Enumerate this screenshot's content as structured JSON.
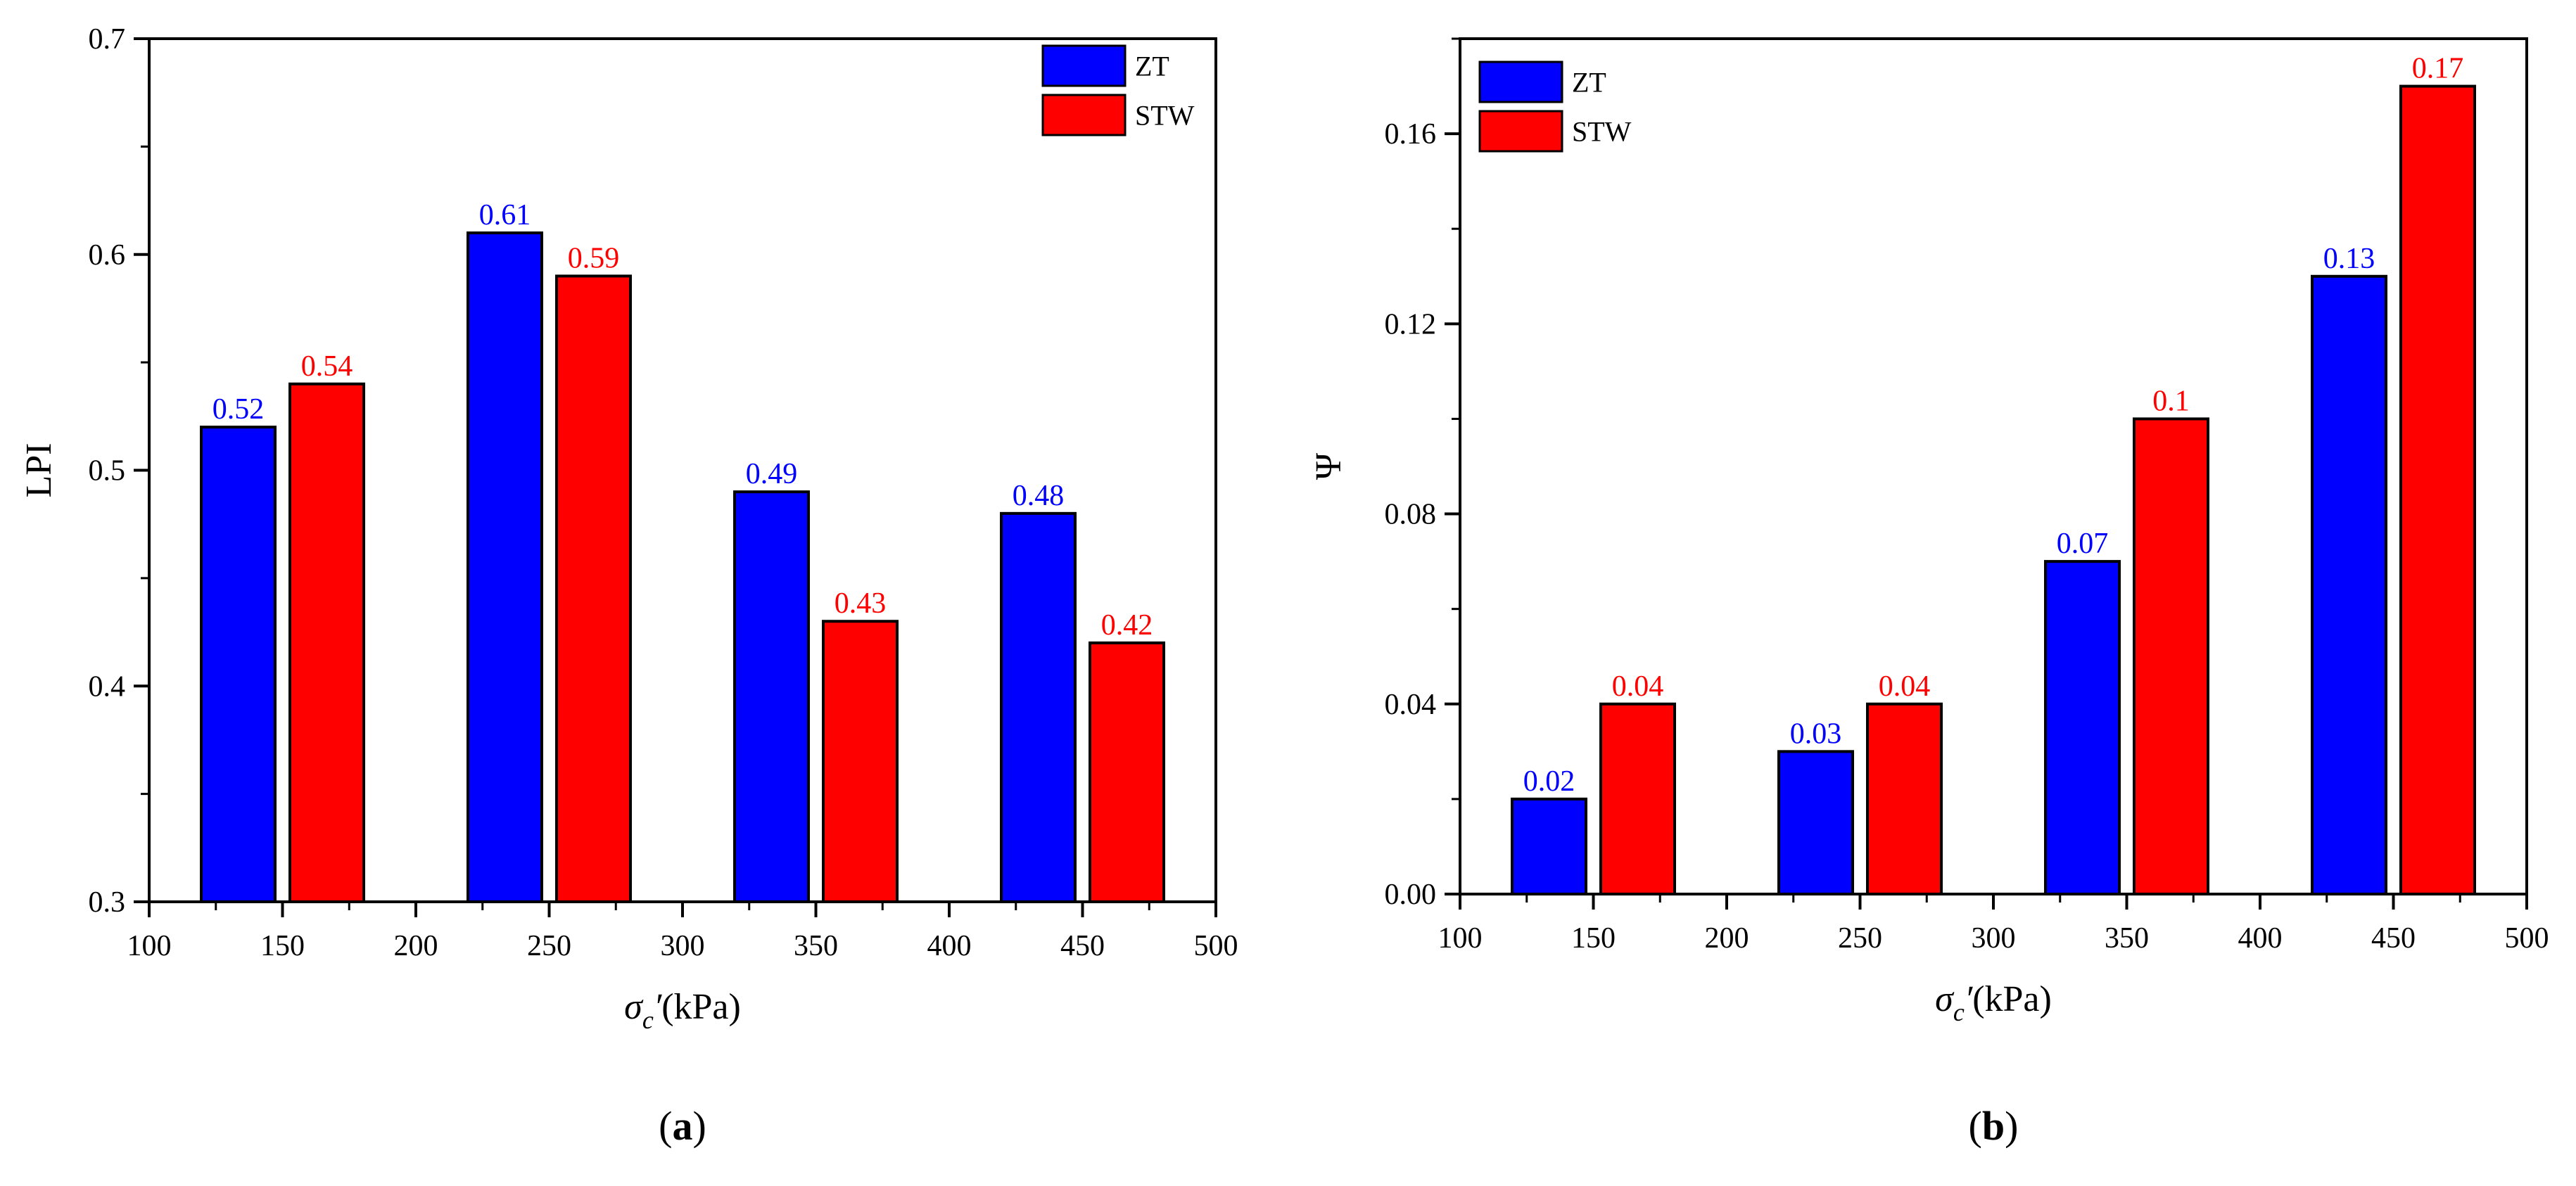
{
  "chart_data": [
    {
      "type": "bar",
      "panel_label": "a",
      "categories": [
        150,
        250,
        350,
        450
      ],
      "series": [
        {
          "name": "ZT",
          "color": "#0000ff",
          "values": [
            0.52,
            0.61,
            0.49,
            0.48
          ],
          "labels": [
            "0.52",
            "0.61",
            "0.49",
            "0.48"
          ]
        },
        {
          "name": "STW",
          "color": "#ff0000",
          "values": [
            0.54,
            0.59,
            0.43,
            0.42
          ],
          "labels": [
            "0.54",
            "0.59",
            "0.43",
            "0.42"
          ]
        }
      ],
      "xlabel": {
        "symbol": "σ",
        "sub": "c",
        "prime": "′",
        "unit": "(kPa)"
      },
      "ylabel": "LPI",
      "xlim": [
        100,
        500
      ],
      "ylim": [
        0.3,
        0.7
      ],
      "xticks": [
        100,
        150,
        200,
        250,
        300,
        350,
        400,
        450,
        500
      ],
      "xtick_labels": [
        "100",
        "150",
        "200",
        "250",
        "300",
        "350",
        "400",
        "450",
        "500"
      ],
      "yticks": [
        0.3,
        0.4,
        0.5,
        0.6,
        0.7
      ],
      "ytick_labels": [
        "0.3",
        "0.4",
        "0.5",
        "0.6",
        "0.7"
      ],
      "legend": "top-right",
      "grid": false
    },
    {
      "type": "bar",
      "panel_label": "b",
      "categories": [
        150,
        250,
        350,
        450
      ],
      "series": [
        {
          "name": "ZT",
          "color": "#0000ff",
          "values": [
            0.02,
            0.03,
            0.07,
            0.13
          ],
          "labels": [
            "0.02",
            "0.03",
            "0.07",
            "0.13"
          ]
        },
        {
          "name": "STW",
          "color": "#ff0000",
          "values": [
            0.04,
            0.04,
            0.1,
            0.17
          ],
          "labels": [
            "0.04",
            "0.04",
            "0.1",
            "0.17"
          ]
        }
      ],
      "xlabel": {
        "symbol": "σ",
        "sub": "c",
        "prime": "′",
        "unit": "(kPa)"
      },
      "ylabel": "Ψ",
      "xlim": [
        100,
        500
      ],
      "ylim": [
        0,
        0.18
      ],
      "xticks": [
        100,
        150,
        200,
        250,
        300,
        350,
        400,
        450,
        500
      ],
      "xtick_labels": [
        "100",
        "150",
        "200",
        "250",
        "300",
        "350",
        "400",
        "450",
        "500"
      ],
      "yticks": [
        0,
        0.04,
        0.08,
        0.12,
        0.16
      ],
      "ytick_labels": [
        "0.00",
        "0.04",
        "0.08",
        "0.12",
        "0.16"
      ],
      "legend": "top-left",
      "grid": false
    }
  ]
}
